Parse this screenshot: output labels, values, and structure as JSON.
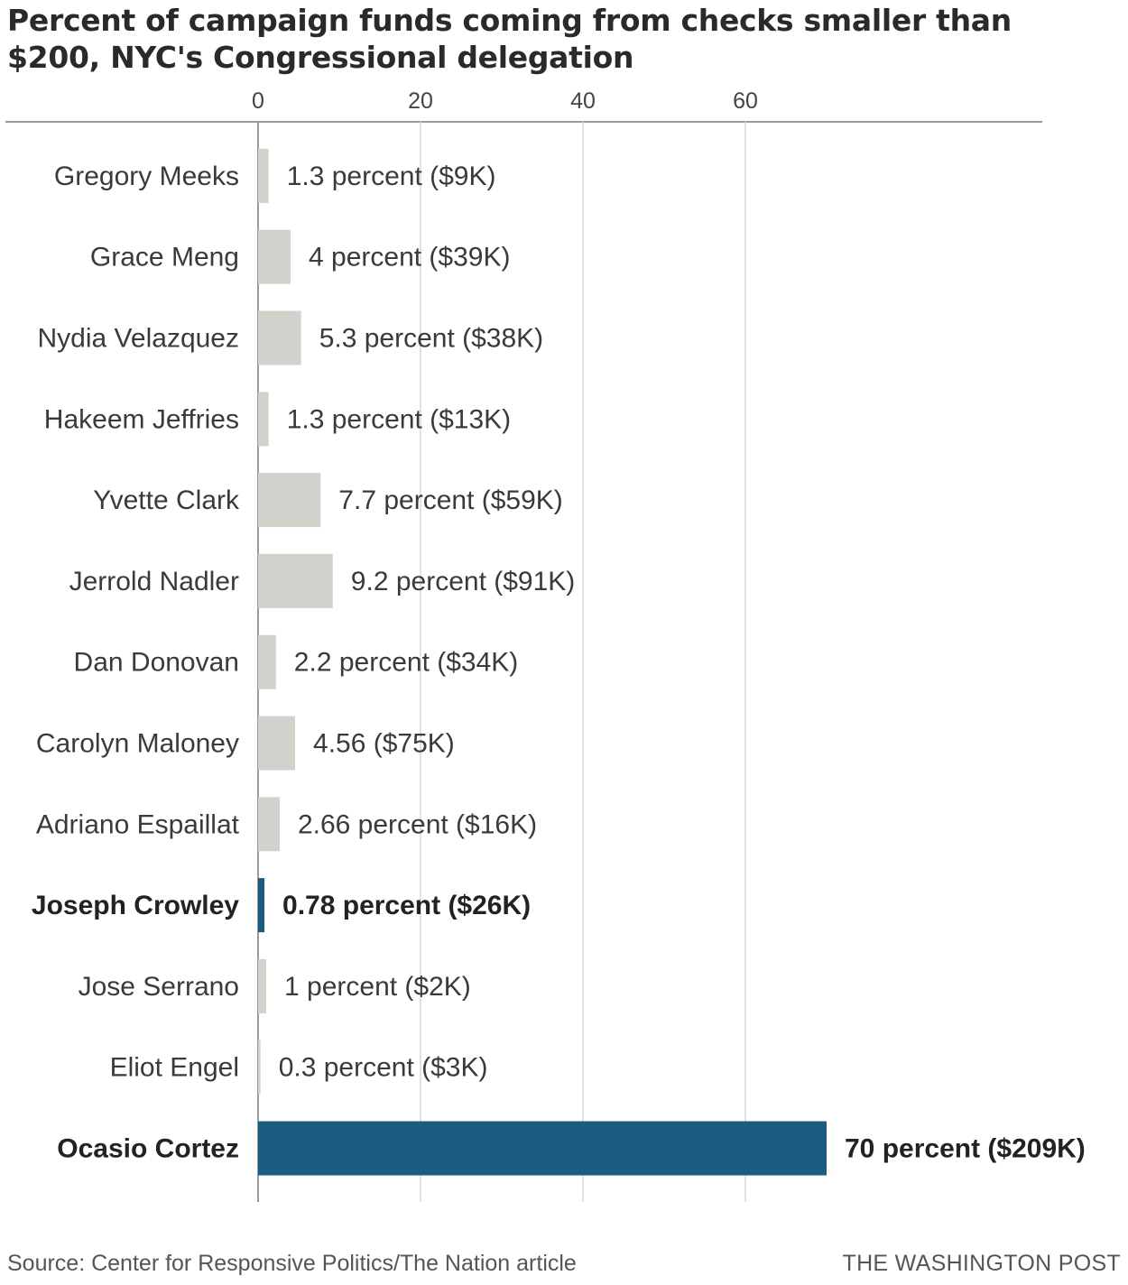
{
  "title": "Percent of campaign funds coming from checks smaller than $200, NYC's Congressional delegation",
  "chart_data": {
    "type": "bar",
    "orientation": "horizontal",
    "title": "Percent of campaign funds coming from checks smaller than $200, NYC's Congressional delegation",
    "xlabel": "",
    "ylabel": "",
    "xlim": [
      0,
      72.5
    ],
    "x_ticks": [
      0,
      20,
      40,
      60
    ],
    "grid": true,
    "colors": {
      "default": "#d2d2cd",
      "highlight": "#1c5c80",
      "grid": "#d8d8d8",
      "axis": "#999999"
    },
    "bars": [
      {
        "name": "Gregory Meeks",
        "value": 1.3,
        "label": "1.3 percent ($9K)",
        "highlight": false
      },
      {
        "name": "Grace Meng",
        "value": 4,
        "label": "4 percent ($39K)",
        "highlight": false
      },
      {
        "name": "Nydia Velazquez",
        "value": 5.3,
        "label": "5.3 percent ($38K)",
        "highlight": false
      },
      {
        "name": "Hakeem Jeffries",
        "value": 1.3,
        "label": "1.3 percent ($13K)",
        "highlight": false
      },
      {
        "name": "Yvette Clark",
        "value": 7.7,
        "label": "7.7 percent ($59K)",
        "highlight": false
      },
      {
        "name": "Jerrold Nadler",
        "value": 9.2,
        "label": "9.2 percent ($91K)",
        "highlight": false
      },
      {
        "name": "Dan Donovan",
        "value": 2.2,
        "label": "2.2 percent ($34K)",
        "highlight": false
      },
      {
        "name": "Carolyn Maloney",
        "value": 4.56,
        "label": "4.56 ($75K)",
        "highlight": false
      },
      {
        "name": "Adriano Espaillat",
        "value": 2.66,
        "label": "2.66 percent ($16K)",
        "highlight": false
      },
      {
        "name": "Joseph Crowley",
        "value": 0.78,
        "label": "0.78 percent ($26K)",
        "highlight": true
      },
      {
        "name": "Jose Serrano",
        "value": 1,
        "label": "1 percent ($2K)",
        "highlight": false
      },
      {
        "name": "Eliot Engel",
        "value": 0.3,
        "label": "0.3 percent ($3K)",
        "highlight": false
      },
      {
        "name": "Ocasio Cortez",
        "value": 70,
        "label": "70 percent ($209K)",
        "highlight": true
      }
    ]
  },
  "footer": {
    "source": "Source: Center for Responsive Politics/The Nation article",
    "brand": "THE WASHINGTON POST"
  }
}
